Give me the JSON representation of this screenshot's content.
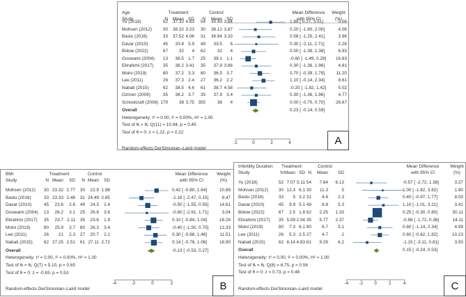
{
  "chart_data": [
    {
      "type": "forest",
      "panel_label": "A",
      "variable": "Age",
      "headers": {
        "study": "Study",
        "treatment": "Treatment",
        "control": "Control",
        "n": "N",
        "mean": "Mean",
        "sd": "SD",
        "md1": "Mean Difference",
        "md2": "with 95% CI",
        "w1": "Weight",
        "w2": "(%)"
      },
      "studies": [
        {
          "name": "Yu (2018)",
          "tn": "52",
          "tm": "37.32",
          "ts": "4.63",
          "cn": "54",
          "cm": "35.43",
          "cs": "3.84",
          "md": 1.89,
          "lo": 0.27,
          "hi": 3.51,
          "w": "5.06"
        },
        {
          "name": "Mohsen (2012)",
          "tn": "30",
          "tm": "38.32",
          "ts": "3.23",
          "cn": "30",
          "cm": "38.12",
          "cs": "3.87",
          "md": 0.2,
          "lo": -1.6,
          "hi": 2.0,
          "w": "4.06"
        },
        {
          "name": "Bastu  (2016)",
          "tn": "33",
          "tm": "37.52",
          "ts": "4.06",
          "cn": "31",
          "cm": "36.94",
          "cs": "3.33",
          "md": 0.58,
          "lo": -1.25,
          "hi": 2.41,
          "w": "3.96"
        },
        {
          "name": "Davar (2010)",
          "tn": "45",
          "tm": "33.8",
          "ts": "5.9",
          "cn": "49",
          "cm": "33.5",
          "cs": "6",
          "md": 0.3,
          "lo": -2.11,
          "hi": 2.71,
          "w": "2.28"
        },
        {
          "name": "Bülow (2022)",
          "tn": "67",
          "tm": "32",
          "ts": "4",
          "cn": "62",
          "cm": "32",
          "cs": "4",
          "md": 0.0,
          "lo": -1.38,
          "hi": 1.38,
          "w": "6.93"
        },
        {
          "name": "Goswami (2004)",
          "tn": "13",
          "tm": "38.5",
          "ts": "1.7",
          "cn": "25",
          "cm": "39.1",
          "cs": "1.1",
          "md": -0.6,
          "lo": -1.49,
          "hi": 0.29,
          "w": "16.63"
        },
        {
          "name": "Ebrahimi (2017)",
          "tn": "35",
          "tm": "38.2",
          "ts": "3.41",
          "cn": "35",
          "cm": "37.9",
          "cs": "3.66",
          "md": 0.3,
          "lo": -1.36,
          "hi": 1.96,
          "w": "4.81"
        },
        {
          "name": "Moini (2019)",
          "tn": "80",
          "tm": "37.2",
          "ts": "3.3",
          "cn": "80",
          "cm": "36.5",
          "cs": "3.7",
          "md": 0.7,
          "lo": -0.39,
          "hi": 1.79,
          "w": "11.20"
        },
        {
          "name": "Lee (2011)",
          "tn": "26",
          "tm": "37.3",
          "ts": "2.4",
          "cn": "27",
          "cm": "36.2",
          "cs": "2.2",
          "md": 1.1,
          "lo": -0.14,
          "hi": 2.34,
          "w": "8.61"
        },
        {
          "name": "Nabati (2015)",
          "tn": "62",
          "tm": "38.5",
          "ts": "4.6",
          "cn": "61",
          "cm": "38.7",
          "cs": "4.58",
          "md": -0.2,
          "lo": -1.82,
          "hi": 1.42,
          "w": "5.02"
        },
        {
          "name": "Ozmen (2009)",
          "tn": "35",
          "tm": "38.2",
          "ts": "3.7",
          "cn": "35",
          "cm": "37.9",
          "cs": "3.4",
          "md": 0.3,
          "lo": -1.36,
          "hi": 1.96,
          "w": "4.77"
        },
        {
          "name": "Schoolcraft (2008)",
          "tn": "179",
          "tm": "38",
          "ts": "3.75",
          "cn": "355",
          "cm": "38",
          "cs": "4",
          "md": 0.0,
          "lo": -0.7,
          "hi": 0.7,
          "w": "26.67"
        }
      ],
      "overall": {
        "label": "Overall",
        "md": 0.23,
        "lo": -0.14,
        "hi": 0.59
      },
      "heterogeneity": "Heterogeneity: τ² = 0.00, I² = 0.00%, H² = 1.00",
      "test_homog": "Test of θᵢ = θⱼ: Q(11) = 10.94, p = 0.45",
      "test_zero": "Test of θ = 0: z = 1.22, p = 0.22",
      "xticks": [
        -2,
        0,
        2,
        4
      ],
      "xlim": [
        -2,
        4
      ],
      "footer": "Random-effects DerSimonian–Laird model"
    },
    {
      "type": "forest",
      "panel_label": "B",
      "variable": "BMI",
      "headers": {
        "study": "Study",
        "treatment": "Treatment",
        "control": "Control",
        "n": "N",
        "mean": "Mean",
        "sd": "SD",
        "md1": "Mean Difference",
        "md2": "with 95% CI",
        "w1": "Weight",
        "w2": "(%)"
      },
      "studies": [
        {
          "name": "Mohsen (2012)",
          "tn": "30",
          "tm": "23.32",
          "ts": "2.77",
          "cn": "30",
          "cm": "22.9",
          "cs": "1.98",
          "md": 0.42,
          "lo": -0.8,
          "hi": 1.64,
          "w": "10.89"
        },
        {
          "name": "Bastu  (2016)",
          "tn": "33",
          "tm": "23.33",
          "ts": "2.48",
          "cn": "31",
          "cm": "24.49",
          "cs": "2.85",
          "md": -1.16,
          "lo": -2.47,
          "hi": 0.15,
          "w": "9.47"
        },
        {
          "name": "Davar (2010)",
          "tn": "45",
          "tm": "23.8",
          "ts": "2.8",
          "cn": "49",
          "cm": "24.3",
          "cs": "2.4",
          "md": -0.5,
          "lo": -1.55,
          "hi": 0.55,
          "w": "14.61"
        },
        {
          "name": "Goswami (2004)",
          "tn": "13",
          "tm": "26.2",
          "ts": "3.1",
          "cn": "25",
          "cm": "26.8",
          "cs": "3.6",
          "md": -0.6,
          "lo": -2.91,
          "hi": 1.71,
          "w": "3.04"
        },
        {
          "name": "Ebrahimi (2017)",
          "tn": "35",
          "tm": "23.7",
          "ts": "2.11",
          "cn": "35",
          "cm": "23.6",
          "cs": "1.9",
          "md": 0.1,
          "lo": -0.84,
          "hi": 1.04,
          "w": "18.26"
        },
        {
          "name": "Moini (2019)",
          "tn": "80",
          "tm": "25.9",
          "ts": "3.7",
          "cn": "80",
          "cm": "26.3",
          "cs": "3.4",
          "md": -0.4,
          "lo": -1.5,
          "hi": 0.7,
          "w": "13.33"
        },
        {
          "name": "Lee (2011)",
          "tn": "26",
          "tm": "21",
          "ts": "2.3",
          "cn": "27",
          "cm": "20.7",
          "cs": "2.1",
          "md": 0.3,
          "lo": -0.88,
          "hi": 1.48,
          "w": "11.51"
        },
        {
          "name": "Nabati (2015)",
          "tn": "62",
          "tm": "27.25",
          "ts": "2.51",
          "cn": "61",
          "cm": "27.11",
          "cs": "2.72",
          "md": 0.14,
          "lo": -0.78,
          "hi": 1.06,
          "w": "18.90"
        }
      ],
      "overall": {
        "label": "Overall",
        "md": -0.13,
        "lo": -0.53,
        "hi": 0.27
      },
      "heterogeneity": "Heterogeneity: τ² = 0.00, I² = 0.00%, H² = 1.00",
      "test_homog": "Test of θᵢ = θⱼ: Q(7) = 5.10, p = 0.65",
      "test_zero": "Test of θ = 0: z = -0.63, p = 0.53",
      "xticks": [
        -4,
        -2,
        0,
        2
      ],
      "xlim": [
        -4,
        2
      ],
      "footer": "Random-effects DerSimonian–Laird model"
    },
    {
      "type": "forest",
      "panel_label": "C",
      "variable": "Infertility Duration",
      "headers": {
        "study": "Study",
        "treatment": "Treatment",
        "control": "Control",
        "n": "N",
        "mean": "Mean",
        "sd": "SD",
        "md1": "Mean Difference",
        "md2": "with 95% CI",
        "w1": "Weight",
        "w2": "(%)"
      },
      "studies": [
        {
          "name": "Yu (2018)",
          "tn": "52",
          "tm": "7.07",
          "ts": "5.11",
          "cn": "54",
          "cm": "7.64",
          "cs": "6.13",
          "md": -0.57,
          "lo": -2.72,
          "hi": 1.58,
          "w": "3.27"
        },
        {
          "name": "Mohsen (2012)",
          "tn": "30",
          "tm": "12.3",
          "ts": "6.1",
          "cn": "30",
          "cm": "11.3",
          "cs": "5",
          "md": 1.0,
          "lo": -1.82,
          "hi": 3.82,
          "w": "1.90"
        },
        {
          "name": "Bastu  (2016)",
          "tn": "33",
          "tm": "5",
          "ts": "3.2",
          "cn": "31",
          "cm": "4.6",
          "cs": "2.3",
          "md": 0.4,
          "lo": -0.97,
          "hi": 1.77,
          "w": "8.03"
        },
        {
          "name": "Davar (2010)",
          "tn": "45",
          "tm": "9.9",
          "ts": "5.1",
          "cn": "49",
          "cm": "8.8",
          "cs": "5.3",
          "md": 1.1,
          "lo": -1.01,
          "hi": 3.21,
          "w": "3.41"
        },
        {
          "name": "Bülow (2022)",
          "tn": "67",
          "tm": "2.5",
          "ts": "1.8",
          "cn": "62",
          "cm": "2.25",
          "cs": "1.33",
          "md": 0.25,
          "lo": -0.3,
          "hi": 0.8,
          "w": "50.11"
        },
        {
          "name": "Ebrahimi (2017)",
          "tn": "35",
          "tm": "5.09",
          "ts": "2.04",
          "cn": "35",
          "cm": "5.77",
          "cs": "2.37",
          "md": -0.68,
          "lo": -1.72,
          "hi": 0.36,
          "w": "14.11"
        },
        {
          "name": "Moini (2019)",
          "tn": "80",
          "tm": "7.3",
          "ts": "6.1",
          "cn": "80",
          "cm": "6.7",
          "cs": "5.1",
          "md": 0.6,
          "lo": -1.14,
          "hi": 2.34,
          "w": "4.99"
        },
        {
          "name": "Lee (2011)",
          "tn": "26",
          "tm": "5.3",
          "ts": "2.5",
          "cn": "27",
          "cm": "4.7",
          "cs": "2",
          "md": 0.6,
          "lo": -0.62,
          "hi": 1.82,
          "w": "10.23"
        },
        {
          "name": "Nabati (2015)",
          "tn": "62",
          "tm": "8.14",
          "ts": "4.83",
          "cn": "61",
          "cm": "9.29",
          "cs": "6.2",
          "md": -1.15,
          "lo": -3.11,
          "hi": 0.81,
          "w": "3.93"
        }
      ],
      "overall": {
        "label": "Overall",
        "md": 0.15,
        "lo": -0.24,
        "hi": 0.53
      },
      "heterogeneity": "Heterogeneity: τ² = 0.00, I² = 0.00%, H² = 1.00",
      "test_homog": "Test of θᵢ = θⱼ: Q(8) = 6.75, p = 0.56",
      "test_zero": "Test of θ = 0: z = 0.73, p = 0.46",
      "xticks": [
        -4,
        -2,
        0,
        2,
        4
      ],
      "xlim": [
        -4,
        4
      ],
      "footer": "Random-effects DerSimonian–Laird model"
    }
  ],
  "colors": {
    "square": "#1f4a78",
    "ci": "#5a86b0",
    "diamond": "#5e8a2e",
    "border": "#8a8a8a"
  }
}
